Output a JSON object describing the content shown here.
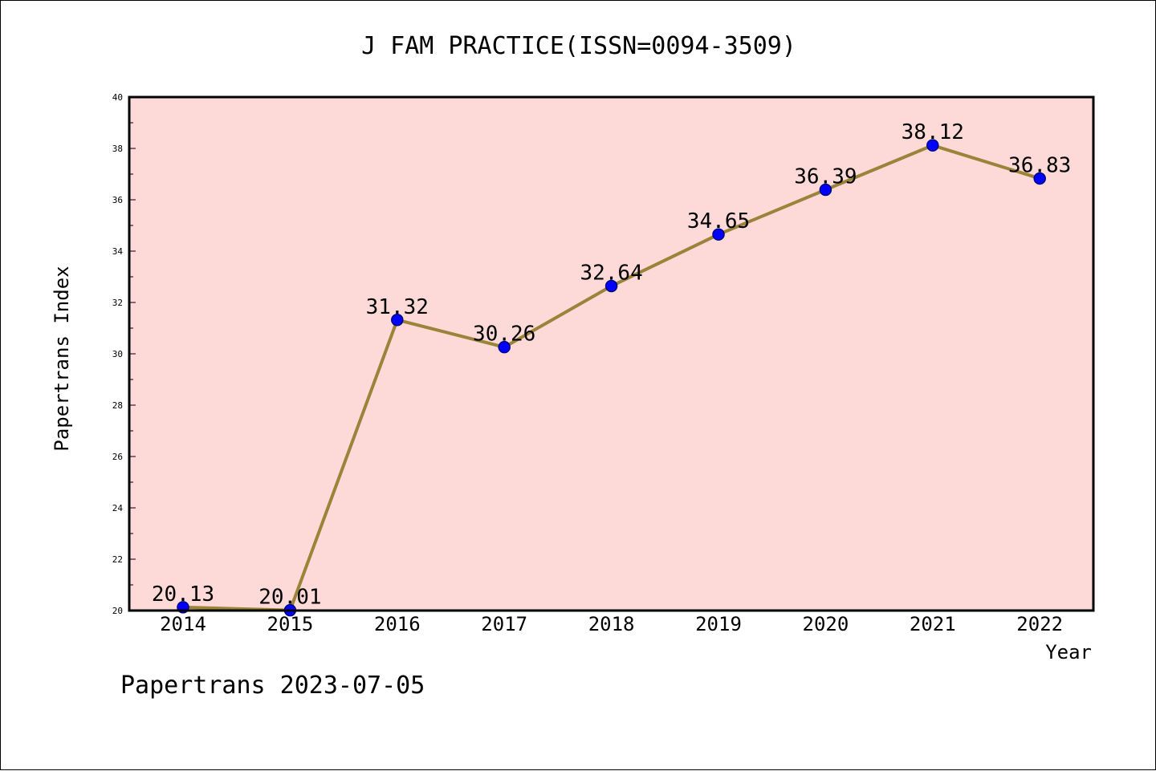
{
  "chart_data": {
    "type": "line",
    "title": "J FAM PRACTICE(ISSN=0094-3509)",
    "xlabel": "Year",
    "ylabel": "Papertrans Index",
    "categories": [
      "2014",
      "2015",
      "2016",
      "2017",
      "2018",
      "2019",
      "2020",
      "2021",
      "2022"
    ],
    "series": [
      {
        "values": [
          20.13,
          20.01,
          31.32,
          30.26,
          32.64,
          34.65,
          36.39,
          38.12,
          36.83
        ],
        "labels": [
          "20.13",
          "20.01",
          "31.32",
          "30.26",
          "32.64",
          "34.65",
          "36.39",
          "38.12",
          "36.83"
        ]
      }
    ],
    "ylim": [
      20,
      40
    ],
    "yticks": [
      20,
      22,
      24,
      26,
      28,
      30,
      32,
      34,
      36,
      38,
      40
    ],
    "ytick_labels": [
      "20",
      "22",
      "24",
      "26",
      "28",
      "30",
      "32",
      "34",
      "36",
      "38",
      "40"
    ],
    "grid": false,
    "colors": {
      "plot_background": "#fddad8",
      "line": "#9a8439",
      "marker": "#0000ff",
      "marker_edge": "#000080"
    }
  },
  "footer": "Papertrans 2023-07-05"
}
